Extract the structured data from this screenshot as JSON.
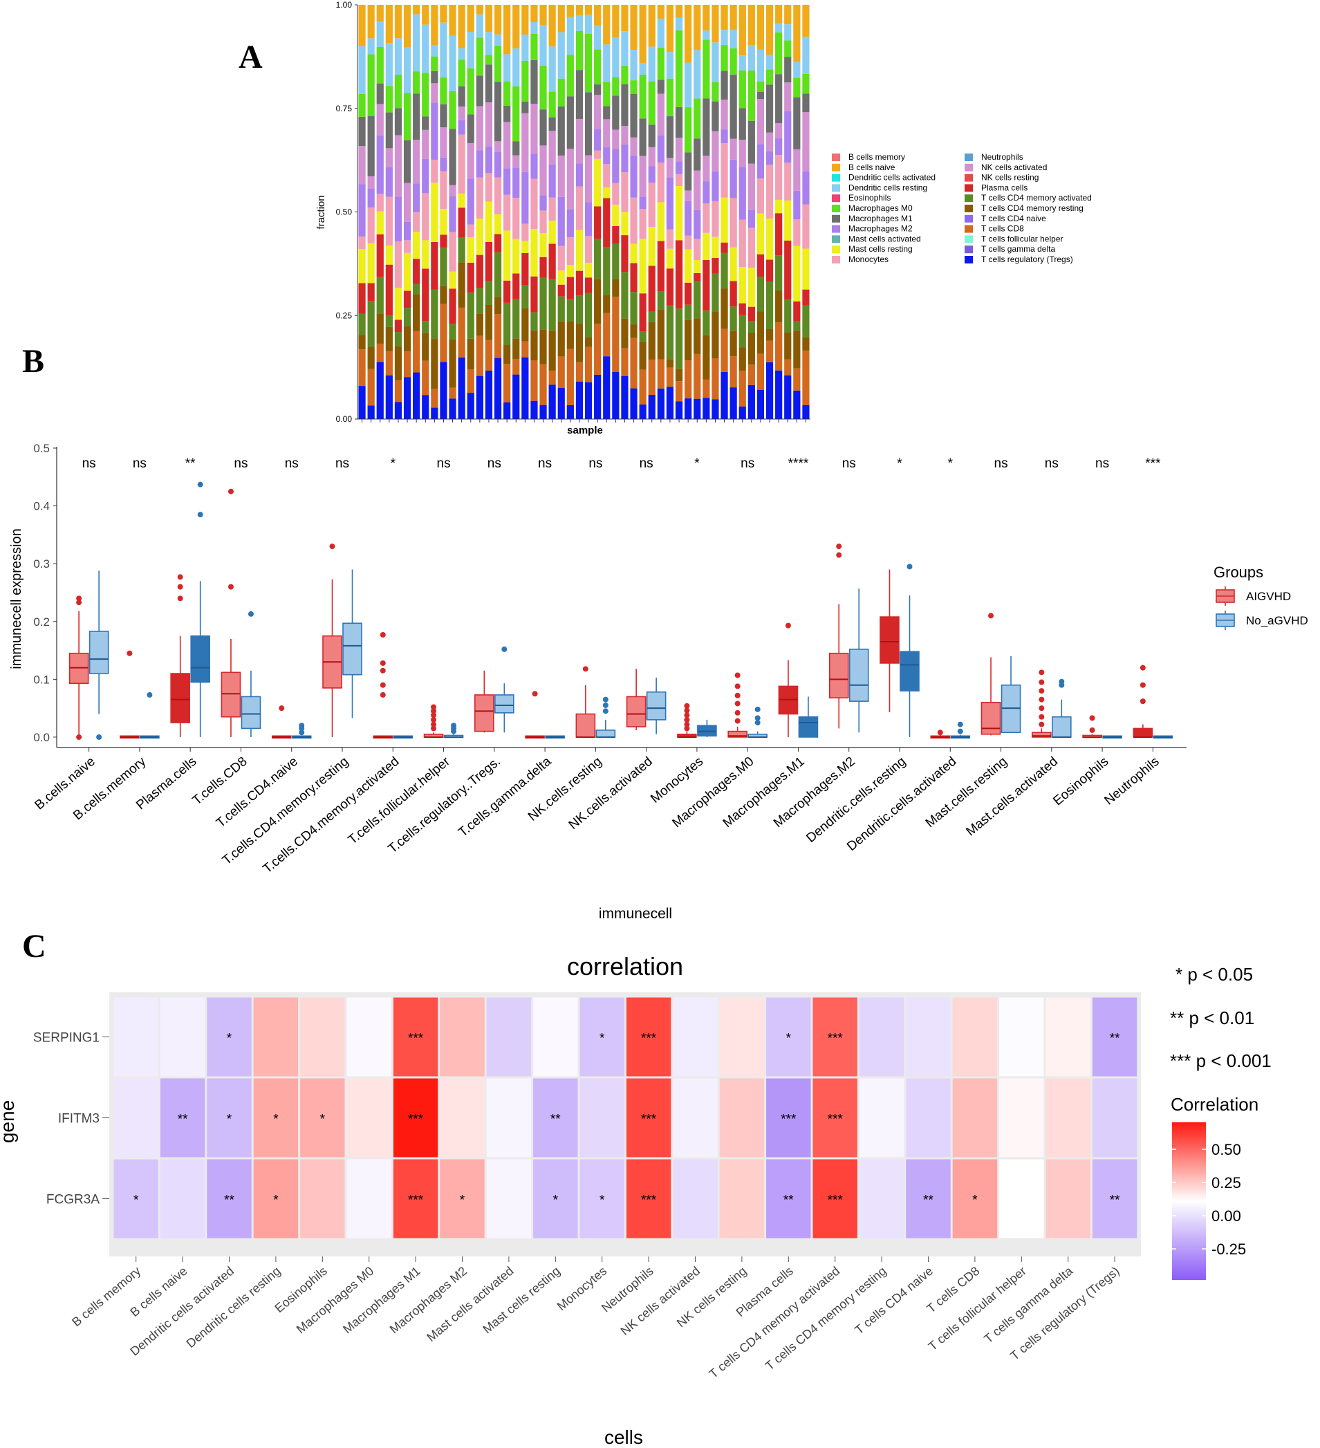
{
  "panels": {
    "a": "A",
    "b": "B",
    "c": "C"
  },
  "colors": {
    "aigvhd_fill": "#f08080",
    "aigvhd_line": "#d62728",
    "no_fill": "#9ec7e8",
    "no_line": "#2e75b6",
    "heat_low": "#8b5cf6",
    "heat_mid": "#ffffff",
    "heat_high": "#ff1a10"
  },
  "chart_data": [
    {
      "type": "stacked_bar",
      "title": "",
      "xlabel": "sample",
      "ylabel": "fraction",
      "ylim": [
        0,
        1
      ],
      "yticks": [
        "0.00",
        "0.25",
        "0.50",
        "0.75",
        "1.00"
      ],
      "n_samples": 50,
      "note": "Per-sample CIBERSORT fractions (approximate). Stack order bottom-to-top follows series order.",
      "series": [
        {
          "name": "T cells regulatory (Tregs)",
          "color": "#0a18f0"
        },
        {
          "name": "T cells CD8",
          "color": "#d2691e"
        },
        {
          "name": "T cells CD4 memory resting",
          "color": "#8b5a00"
        },
        {
          "name": "T cells CD4 memory activated",
          "color": "#5e8a24"
        },
        {
          "name": "Plasma cells",
          "color": "#d62728"
        },
        {
          "name": "Mast cells resting",
          "color": "#eeee1a"
        },
        {
          "name": "Monocytes",
          "color": "#f2a0b4"
        },
        {
          "name": "Macrophages M2",
          "color": "#a980ee"
        },
        {
          "name": "NK cells activated",
          "color": "#d291d0"
        },
        {
          "name": "Macrophages M1",
          "color": "#6e6e6e"
        },
        {
          "name": "Macrophages M0",
          "color": "#5ee01a"
        },
        {
          "name": "Dendritic cells resting",
          "color": "#89cdf2"
        },
        {
          "name": "B cells naive",
          "color": "#f0ab1b"
        }
      ],
      "legend": {
        "placement": "right",
        "col1": [
          {
            "name": "B cells memory",
            "color": "#f07070"
          },
          {
            "name": "B cells naive",
            "color": "#f0ab1b"
          },
          {
            "name": "Dendritic cells activated",
            "color": "#1ae6e6"
          },
          {
            "name": "Dendritic cells resting",
            "color": "#89cdf2"
          },
          {
            "name": "Eosinophils",
            "color": "#f0407a"
          },
          {
            "name": "Macrophages M0",
            "color": "#5ee01a"
          },
          {
            "name": "Macrophages M1",
            "color": "#6e6e6e"
          },
          {
            "name": "Macrophages M2",
            "color": "#a980ee"
          },
          {
            "name": "Mast cells activated",
            "color": "#5fb3b3"
          },
          {
            "name": "Mast cells resting",
            "color": "#eeee1a"
          },
          {
            "name": "Monocytes",
            "color": "#f2a0b4"
          }
        ],
        "col2": [
          {
            "name": "Neutrophils",
            "color": "#5b9fcf"
          },
          {
            "name": "NK cells activated",
            "color": "#d291d0"
          },
          {
            "name": "NK cells resting",
            "color": "#e84a4a"
          },
          {
            "name": "Plasma cells",
            "color": "#d62728"
          },
          {
            "name": "T cells CD4 memory activated",
            "color": "#5e8a24"
          },
          {
            "name": "T cells CD4 memory resting",
            "color": "#8b5a00"
          },
          {
            "name": "T cells CD4 naive",
            "color": "#8a6af0"
          },
          {
            "name": "T cells CD8",
            "color": "#d2691e"
          },
          {
            "name": "T cells follicular helper",
            "color": "#7ff5d5"
          },
          {
            "name": "T cells gamma delta",
            "color": "#7b5cd6"
          },
          {
            "name": "T cells regulatory (Tregs)",
            "color": "#0a18f0"
          }
        ]
      }
    },
    {
      "type": "boxplot",
      "xlabel": "immunecell",
      "ylabel": "immunecell expression",
      "ylim": [
        0,
        0.5
      ],
      "yticks": [
        "0.0",
        "0.1",
        "0.2",
        "0.3",
        "0.4",
        "0.5"
      ],
      "legend_title": "Groups",
      "groups": [
        "AIGVHD",
        "No_aGVHD"
      ],
      "categories": [
        "B.cells.naive",
        "B.cells.memory",
        "Plasma.cells",
        "T.cells.CD8",
        "T.cells.CD4.naive",
        "T.cells.CD4.memory.resting",
        "T.cells.CD4.memory.activated",
        "T.cells.follicular.helper",
        "T.cells.regulatory..Tregs.",
        "T.cells.gamma.delta",
        "NK.cells.resting",
        "NK.cells.activated",
        "Monocytes",
        "Macrophages.M0",
        "Macrophages.M1",
        "Macrophages.M2",
        "Dendritic.cells.resting",
        "Dendritic.cells.activated",
        "Mast.cells.resting",
        "Mast.cells.activated",
        "Eosinophils",
        "Neutrophils"
      ],
      "significance": [
        "ns",
        "ns",
        "**",
        "ns",
        "ns",
        "ns",
        "*",
        "ns",
        "ns",
        "ns",
        "ns",
        "ns",
        "*",
        "ns",
        "****",
        "ns",
        "*",
        "*",
        "ns",
        "ns",
        "ns",
        "***"
      ],
      "boxes": [
        [
          [
            0,
            0.093,
            0.12,
            0.145,
            0.218,
            [
              0.233,
              0.24,
              0.0
            ]
          ],
          [
            0.04,
            0.11,
            0.135,
            0.183,
            0.288,
            [
              0.0
            ]
          ]
        ],
        [
          [
            0,
            0,
            0,
            0.002,
            0.003,
            [
              0.145
            ]
          ],
          [
            0,
            0,
            0,
            0.002,
            0.003,
            [
              0.073
            ]
          ]
        ],
        [
          [
            0,
            0.025,
            0.065,
            0.11,
            0.175,
            [
              0.24,
              0.26,
              0.277
            ]
          ],
          [
            0,
            0.095,
            0.12,
            0.175,
            0.27,
            [
              0.385,
              0.437
            ]
          ]
        ],
        [
          [
            0,
            0.035,
            0.075,
            0.112,
            0.17,
            [
              0.26,
              0.425
            ]
          ],
          [
            0,
            0.015,
            0.04,
            0.07,
            0.115,
            [
              0.213
            ]
          ]
        ],
        [
          [
            0,
            0,
            0,
            0.002,
            0.003,
            [
              0.05
            ]
          ],
          [
            0,
            0,
            0,
            0.002,
            0.003,
            [
              0.008,
              0.015,
              0.02
            ]
          ]
        ],
        [
          [
            0,
            0.085,
            0.13,
            0.175,
            0.273,
            [
              0.33
            ]
          ],
          [
            0.033,
            0.108,
            0.158,
            0.197,
            0.29,
            []
          ]
        ],
        [
          [
            0,
            0,
            0,
            0.002,
            0.003,
            [
              0.073,
              0.09,
              0.115,
              0.128,
              0.177
            ]
          ],
          [
            0,
            0,
            0,
            0.002,
            0.003,
            []
          ]
        ],
        [
          [
            0,
            0,
            0,
            0.005,
            0.008,
            [
              0.015,
              0.022,
              0.03,
              0.038,
              0.045,
              0.052
            ]
          ],
          [
            0,
            0,
            0,
            0.003,
            0.005,
            [
              0.01,
              0.015,
              0.02
            ]
          ]
        ],
        [
          [
            0.008,
            0.01,
            0.045,
            0.073,
            0.115,
            []
          ],
          [
            0.008,
            0.042,
            0.055,
            0.073,
            0.093,
            [
              0.152
            ]
          ]
        ],
        [
          [
            0,
            0,
            0,
            0.002,
            0.003,
            [
              0.075
            ]
          ],
          [
            0,
            0,
            0,
            0.002,
            0.003,
            []
          ]
        ],
        [
          [
            0,
            0,
            0,
            0.04,
            0.09,
            [
              0.118
            ]
          ],
          [
            0,
            0,
            0,
            0.012,
            0.03,
            [
              0.045,
              0.055,
              0.065
            ]
          ]
        ],
        [
          [
            0.012,
            0.018,
            0.04,
            0.07,
            0.118,
            []
          ],
          [
            0.005,
            0.03,
            0.05,
            0.078,
            0.103,
            []
          ]
        ],
        [
          [
            0,
            0,
            0,
            0.005,
            0.01,
            [
              0.015,
              0.022,
              0.03,
              0.038,
              0.046,
              0.054
            ]
          ],
          [
            0,
            0.002,
            0.01,
            0.02,
            0.03,
            []
          ]
        ],
        [
          [
            0,
            0,
            0.002,
            0.01,
            0.018,
            [
              0.028,
              0.042,
              0.058,
              0.072,
              0.088,
              0.107
            ]
          ],
          [
            0,
            0,
            0,
            0.005,
            0.01,
            [
              0.025,
              0.033,
              0.048
            ]
          ]
        ],
        [
          [
            0,
            0.04,
            0.065,
            0.088,
            0.133,
            [
              0.193
            ]
          ],
          [
            0,
            0,
            0.025,
            0.035,
            0.07,
            []
          ]
        ],
        [
          [
            0.015,
            0.068,
            0.1,
            0.145,
            0.23,
            [
              0.315,
              0.33
            ]
          ],
          [
            0.008,
            0.062,
            0.09,
            0.152,
            0.257,
            []
          ]
        ],
        [
          [
            0.043,
            0.128,
            0.165,
            0.208,
            0.29,
            []
          ],
          [
            0,
            0.08,
            0.125,
            0.148,
            0.245,
            [
              0.295
            ]
          ]
        ],
        [
          [
            0,
            0,
            0,
            0.002,
            0.004,
            [
              0.008
            ]
          ],
          [
            0,
            0,
            0,
            0.002,
            0.004,
            [
              0.01,
              0.022
            ]
          ]
        ],
        [
          [
            0.003,
            0.005,
            0.015,
            0.06,
            0.138,
            [
              0.21
            ]
          ],
          [
            0.008,
            0.008,
            0.05,
            0.09,
            0.14,
            []
          ]
        ],
        [
          [
            0,
            0,
            0.002,
            0.008,
            0.015,
            [
              0.022,
              0.035,
              0.05,
              0.065,
              0.08,
              0.095,
              0.112
            ]
          ],
          [
            0,
            0,
            0,
            0.035,
            0.065,
            [
              0.09,
              0.096
            ]
          ]
        ],
        [
          [
            0,
            0,
            0,
            0.003,
            0.005,
            [
              0.012,
              0.033
            ]
          ],
          [
            0,
            0,
            0,
            0.002,
            0.003,
            []
          ]
        ],
        [
          [
            0,
            0,
            0,
            0.015,
            0.022,
            [
              0.062,
              0.09,
              0.12
            ]
          ],
          [
            0,
            0,
            0,
            0.002,
            0.003,
            []
          ]
        ]
      ]
    },
    {
      "type": "heatmap",
      "title": "correlation",
      "xlabel": "cells",
      "ylabel": "gene",
      "rows": [
        "SERPING1",
        "IFITM3",
        "FCGR3A"
      ],
      "cols": [
        "B cells memory",
        "B cells naive",
        "Dendritic cells activated",
        "Dendritic cells resting",
        "Eosinophils",
        "Macrophages M0",
        "Macrophages M1",
        "Macrophages M2",
        "Mast cells activated",
        "Mast cells resting",
        "Monocytes",
        "Neutrophils",
        "NK cells activated",
        "NK cells resting",
        "Plasma cells",
        "T cells CD4 memory activated",
        "T cells CD4 memory resting",
        "T cells CD4 naive",
        "T cells CD8",
        "T cells follicular helper",
        "T cells gamma delta",
        "T cells regulatory (Tregs)"
      ],
      "values": [
        [
          -0.1,
          -0.08,
          -0.35,
          0.28,
          0.15,
          -0.03,
          0.65,
          0.25,
          -0.25,
          -0.03,
          -0.3,
          0.68,
          -0.1,
          0.1,
          -0.3,
          0.58,
          -0.22,
          -0.15,
          0.15,
          -0.02,
          0.05,
          -0.45
        ],
        [
          -0.13,
          -0.42,
          -0.35,
          0.32,
          0.3,
          0.1,
          0.85,
          0.1,
          -0.05,
          -0.38,
          -0.2,
          0.68,
          -0.08,
          0.2,
          -0.55,
          0.6,
          -0.05,
          -0.22,
          0.25,
          0.03,
          0.13,
          -0.25
        ],
        [
          -0.3,
          -0.18,
          -0.45,
          0.35,
          0.22,
          -0.05,
          0.68,
          0.3,
          -0.05,
          -0.35,
          -0.28,
          0.68,
          -0.18,
          0.18,
          -0.5,
          0.7,
          -0.15,
          -0.45,
          0.35,
          0.0,
          0.2,
          -0.38
        ]
      ],
      "stars": [
        [
          "",
          "",
          "*",
          "",
          "",
          "",
          "***",
          "",
          "",
          "",
          "*",
          "***",
          "",
          "",
          "*",
          "***",
          "",
          "",
          "",
          "",
          "",
          "**"
        ],
        [
          "",
          "**",
          "*",
          "*",
          "*",
          "",
          "***",
          "",
          "",
          "**",
          "",
          "***",
          "",
          "",
          "***",
          "***",
          "",
          "",
          "",
          "",
          "",
          ""
        ],
        [
          "*",
          "",
          "**",
          "*",
          "",
          "",
          "***",
          "*",
          "",
          "*",
          "*",
          "***",
          "",
          "",
          "**",
          "***",
          "",
          "**",
          "*",
          "",
          "",
          "**"
        ]
      ],
      "legend_title": "Correlation",
      "legend_ticks": [
        "0.50",
        "0.25",
        "0.00",
        "-0.25"
      ],
      "pvalue_notes": [
        "* p < 0.05",
        "** p < 0.01",
        "*** p < 0.001"
      ]
    }
  ]
}
